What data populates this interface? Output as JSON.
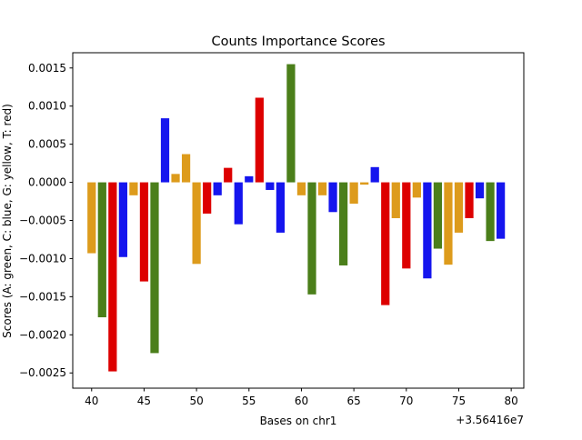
{
  "chart_data": {
    "type": "bar",
    "title": "Counts Importance Scores",
    "xlabel": "Bases on chr1",
    "ylabel": "Scores (A: green, C: blue, G: yellow, T: red)",
    "x_offset_label": "+3.56416e7",
    "xlim": [
      38.2,
      81.2
    ],
    "ylim": [
      -0.0027,
      0.0017
    ],
    "x_ticks": [
      40,
      45,
      50,
      55,
      60,
      65,
      70,
      75,
      80
    ],
    "y_ticks": [
      0.0015,
      0.001,
      0.0005,
      0.0,
      -0.0005,
      -0.001,
      -0.0015,
      -0.002,
      -0.0025
    ],
    "y_tick_labels": [
      "0.0015",
      "0.0010",
      "0.0005",
      "0.0000",
      "−0.0005",
      "−0.0010",
      "−0.0015",
      "−0.0020",
      "−0.0025"
    ],
    "grid": false,
    "legend": "none",
    "base_colors": {
      "A": "#4b7f1a",
      "C": "#1515ee",
      "G": "#dd9b1c",
      "T": "#dd0000"
    },
    "x": [
      40,
      41,
      42,
      43,
      44,
      45,
      46,
      47,
      48,
      49,
      50,
      51,
      52,
      53,
      54,
      55,
      56,
      57,
      58,
      59,
      60,
      61,
      62,
      63,
      64,
      65,
      66,
      67,
      68,
      69,
      70,
      71,
      72,
      73,
      74,
      75,
      76,
      77,
      78,
      79
    ],
    "bases": [
      "G",
      "A",
      "T",
      "C",
      "G",
      "T",
      "A",
      "C",
      "G",
      "G",
      "G",
      "T",
      "C",
      "T",
      "C",
      "C",
      "T",
      "C",
      "C",
      "A",
      "G",
      "A",
      "G",
      "C",
      "A",
      "G",
      "G",
      "C",
      "T",
      "G",
      "T",
      "G",
      "C",
      "A",
      "G",
      "G",
      "T",
      "C",
      "A",
      "C"
    ],
    "values": [
      -0.00093,
      -0.00177,
      -0.00248,
      -0.00098,
      -0.00017,
      -0.0013,
      -0.00224,
      0.00084,
      0.00011,
      0.00037,
      -0.00107,
      -0.00041,
      -0.00017,
      0.00019,
      -0.00055,
      8e-05,
      0.00111,
      -0.0001,
      -0.00066,
      0.00155,
      -0.00017,
      -0.00147,
      -0.00017,
      -0.00039,
      -0.00109,
      -0.00028,
      -3e-05,
      0.0002,
      -0.00161,
      -0.00047,
      -0.00113,
      -0.0002,
      -0.00126,
      -0.00087,
      -0.00108,
      -0.00066,
      -0.00047,
      -0.00021,
      -0.00077,
      -0.00074
    ]
  }
}
